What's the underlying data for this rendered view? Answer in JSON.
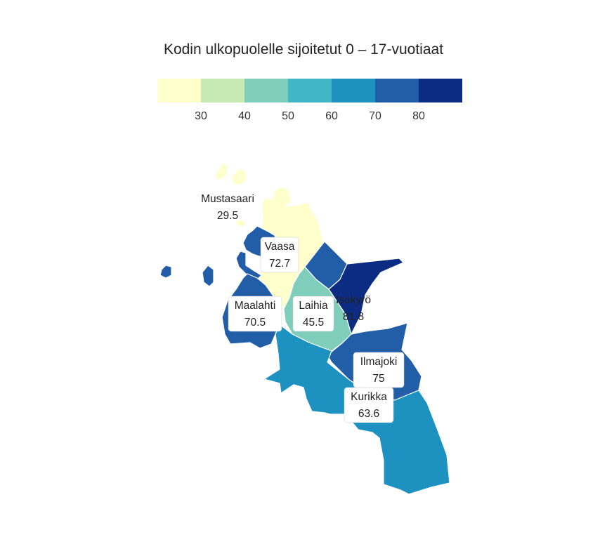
{
  "title": "Kodin ulkopuolelle sijoitetut 0 – 17-vuotiaat",
  "legend": {
    "colors": [
      "#ffffcc",
      "#c7e9b4",
      "#7fcdbb",
      "#41b6c4",
      "#1d91c0",
      "#225ea8",
      "#0c2c84"
    ],
    "ticks": [
      "30",
      "40",
      "50",
      "60",
      "70",
      "80"
    ]
  },
  "regions": [
    {
      "name": "Mustasaari",
      "value": "29.5",
      "color": "#ffffcc"
    },
    {
      "name": "Vaasa",
      "value": "72.7",
      "color": "#225ea8"
    },
    {
      "name": "Maalahti",
      "value": "70.5",
      "color": "#225ea8"
    },
    {
      "name": "Laihia",
      "value": "45.5",
      "color": "#7fcdbb"
    },
    {
      "name": "Isokyrö",
      "value": "81.8",
      "color": "#0c2c84"
    },
    {
      "name": "Ilmajoki",
      "value": "75",
      "color": "#225ea8"
    },
    {
      "name": "Kurikka",
      "value": "63.6",
      "color": "#1d91c0"
    }
  ],
  "extra_areas": [
    {
      "color": "#225ea8"
    }
  ]
}
